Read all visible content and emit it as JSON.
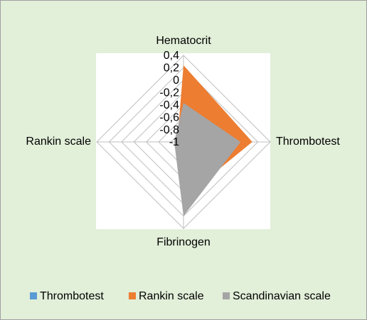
{
  "chart_data": {
    "type": "radar",
    "categories": [
      "Hematocrit",
      "Thrombotest",
      "Fibrinogen",
      "Rankin scale"
    ],
    "series": [
      {
        "name": "Thrombotest",
        "color": "#5b9bd5",
        "values": [
          -1,
          -1,
          -1,
          -1
        ]
      },
      {
        "name": "Rankin scale",
        "color": "#ed7d31",
        "values": [
          0.24,
          0.11,
          -0.09,
          -0.9
        ]
      },
      {
        "name": "Scandinavian scale",
        "color": "#a5a5a5",
        "values": [
          -0.37,
          -0.08,
          0.2,
          -0.85
        ]
      }
    ],
    "ylim": [
      -1,
      0.4
    ],
    "yticks": [
      {
        "value": 0.4,
        "label": "0,4"
      },
      {
        "value": 0.2,
        "label": "0,2"
      },
      0,
      {
        "value": -0.2,
        "label": "-0,2"
      },
      {
        "value": -0.4,
        "label": "-0,4"
      },
      {
        "value": -0.6,
        "label": "-0,6"
      },
      {
        "value": -0.8,
        "label": "-0,8"
      },
      -1
    ],
    "grid": true,
    "legend": "bottom"
  }
}
